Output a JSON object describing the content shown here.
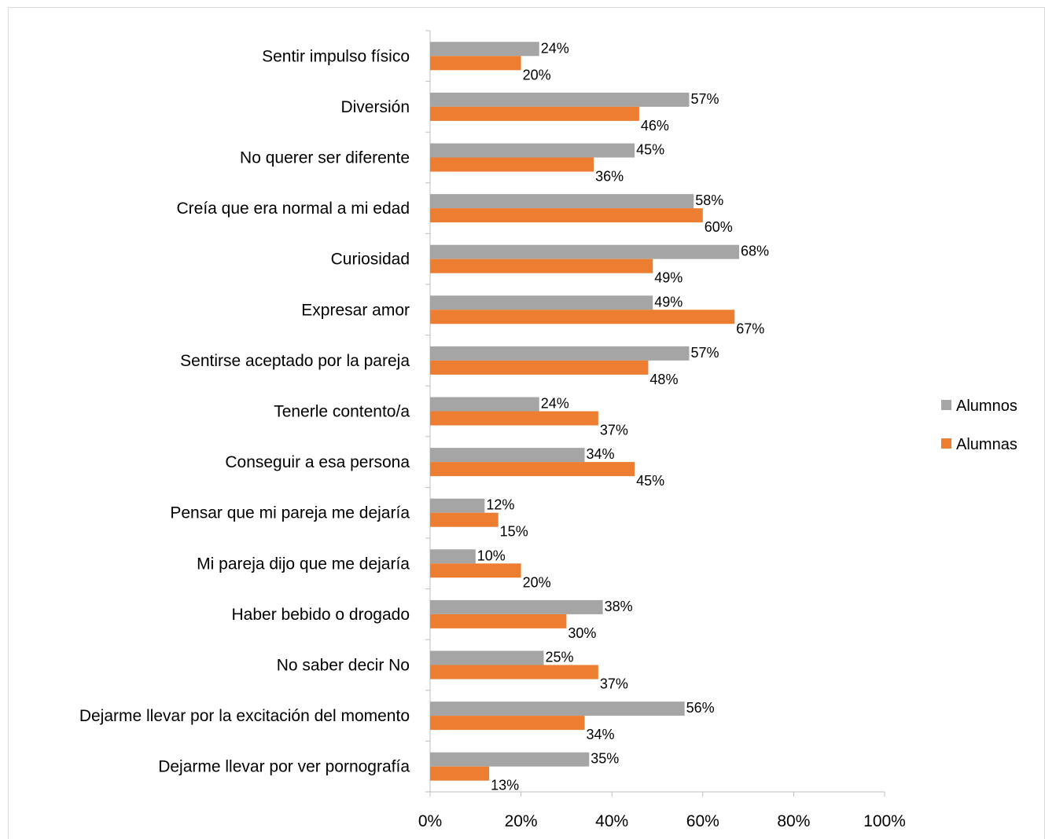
{
  "chart_data": {
    "type": "bar",
    "orientation": "horizontal",
    "categories": [
      "Sentir impulso físico",
      "Diversión",
      "No querer ser diferente",
      "Creía que era normal a mi edad",
      "Curiosidad",
      "Expresar amor",
      "Sentirse aceptado por la pareja",
      "Tenerle contento/a",
      "Conseguir a esa persona",
      "Pensar que mi pareja me dejaría",
      "Mi pareja dijo que me dejaría",
      "Haber bebido o drogado",
      "No saber decir No",
      "Dejarme llevar por la excitación del momento",
      "Dejarme llevar por ver pornografía"
    ],
    "series": [
      {
        "name": "Alumnos",
        "color": "#a5a5a5",
        "values": [
          24,
          57,
          45,
          58,
          68,
          49,
          57,
          24,
          34,
          12,
          10,
          38,
          25,
          56,
          35
        ],
        "labels": [
          "24%",
          "57%",
          "45%",
          "58%",
          "68%",
          "49%",
          "57%",
          "24%",
          "34%",
          "12%",
          "10%",
          "38%",
          "25%",
          "56%",
          "35%"
        ]
      },
      {
        "name": "Alumnas",
        "color": "#ed7d31",
        "values": [
          20,
          46,
          36,
          60,
          49,
          67,
          48,
          37,
          45,
          15,
          20,
          30,
          37,
          34,
          13
        ],
        "labels": [
          "20%",
          "46%",
          "36%",
          "60%",
          "49%",
          "67%",
          "48%",
          "37%",
          "45%",
          "15%",
          "20%",
          "30%",
          "37%",
          "34%",
          "13%"
        ]
      }
    ],
    "x_ticks": [
      "0%",
      "20%",
      "40%",
      "60%",
      "80%",
      "100%"
    ],
    "xlim": [
      0,
      100
    ],
    "grid": false,
    "legend_position": "right"
  }
}
